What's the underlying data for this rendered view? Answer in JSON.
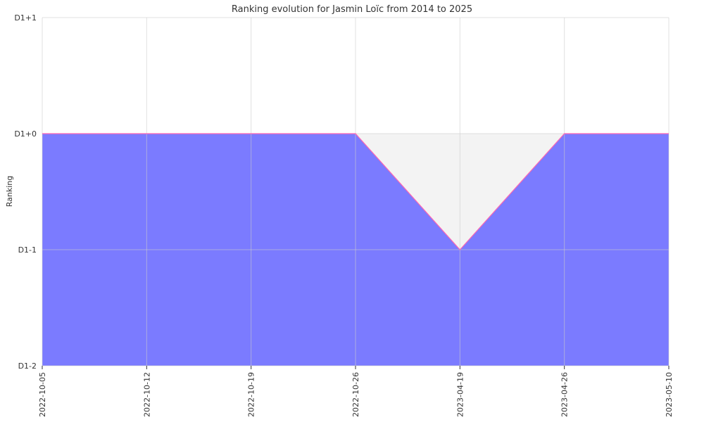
{
  "chart_data": {
    "type": "area",
    "title": "Ranking evolution for Jasmin Loïc from 2014 to 2025",
    "xlabel": "",
    "ylabel": "Ranking",
    "x": [
      "2022-10-05",
      "2022-10-12",
      "2022-10-19",
      "2022-10-26",
      "2023-04-19",
      "2023-04-26",
      "2023-05-10"
    ],
    "y_ticks": [
      {
        "value": 1,
        "label": "D1+1"
      },
      {
        "value": 0,
        "label": "D1+0"
      },
      {
        "value": -1,
        "label": "D1-1"
      },
      {
        "value": -2,
        "label": "D1-2"
      }
    ],
    "ylim": [
      -2,
      1
    ],
    "series": [
      {
        "values": [
          0,
          0,
          0,
          0,
          -1,
          0,
          0
        ]
      }
    ],
    "grid": true,
    "colors": {
      "area": "#7b7bff",
      "line": "#ff66b2",
      "band_top": "#f3f3f3",
      "grid": "#cccccc"
    }
  }
}
